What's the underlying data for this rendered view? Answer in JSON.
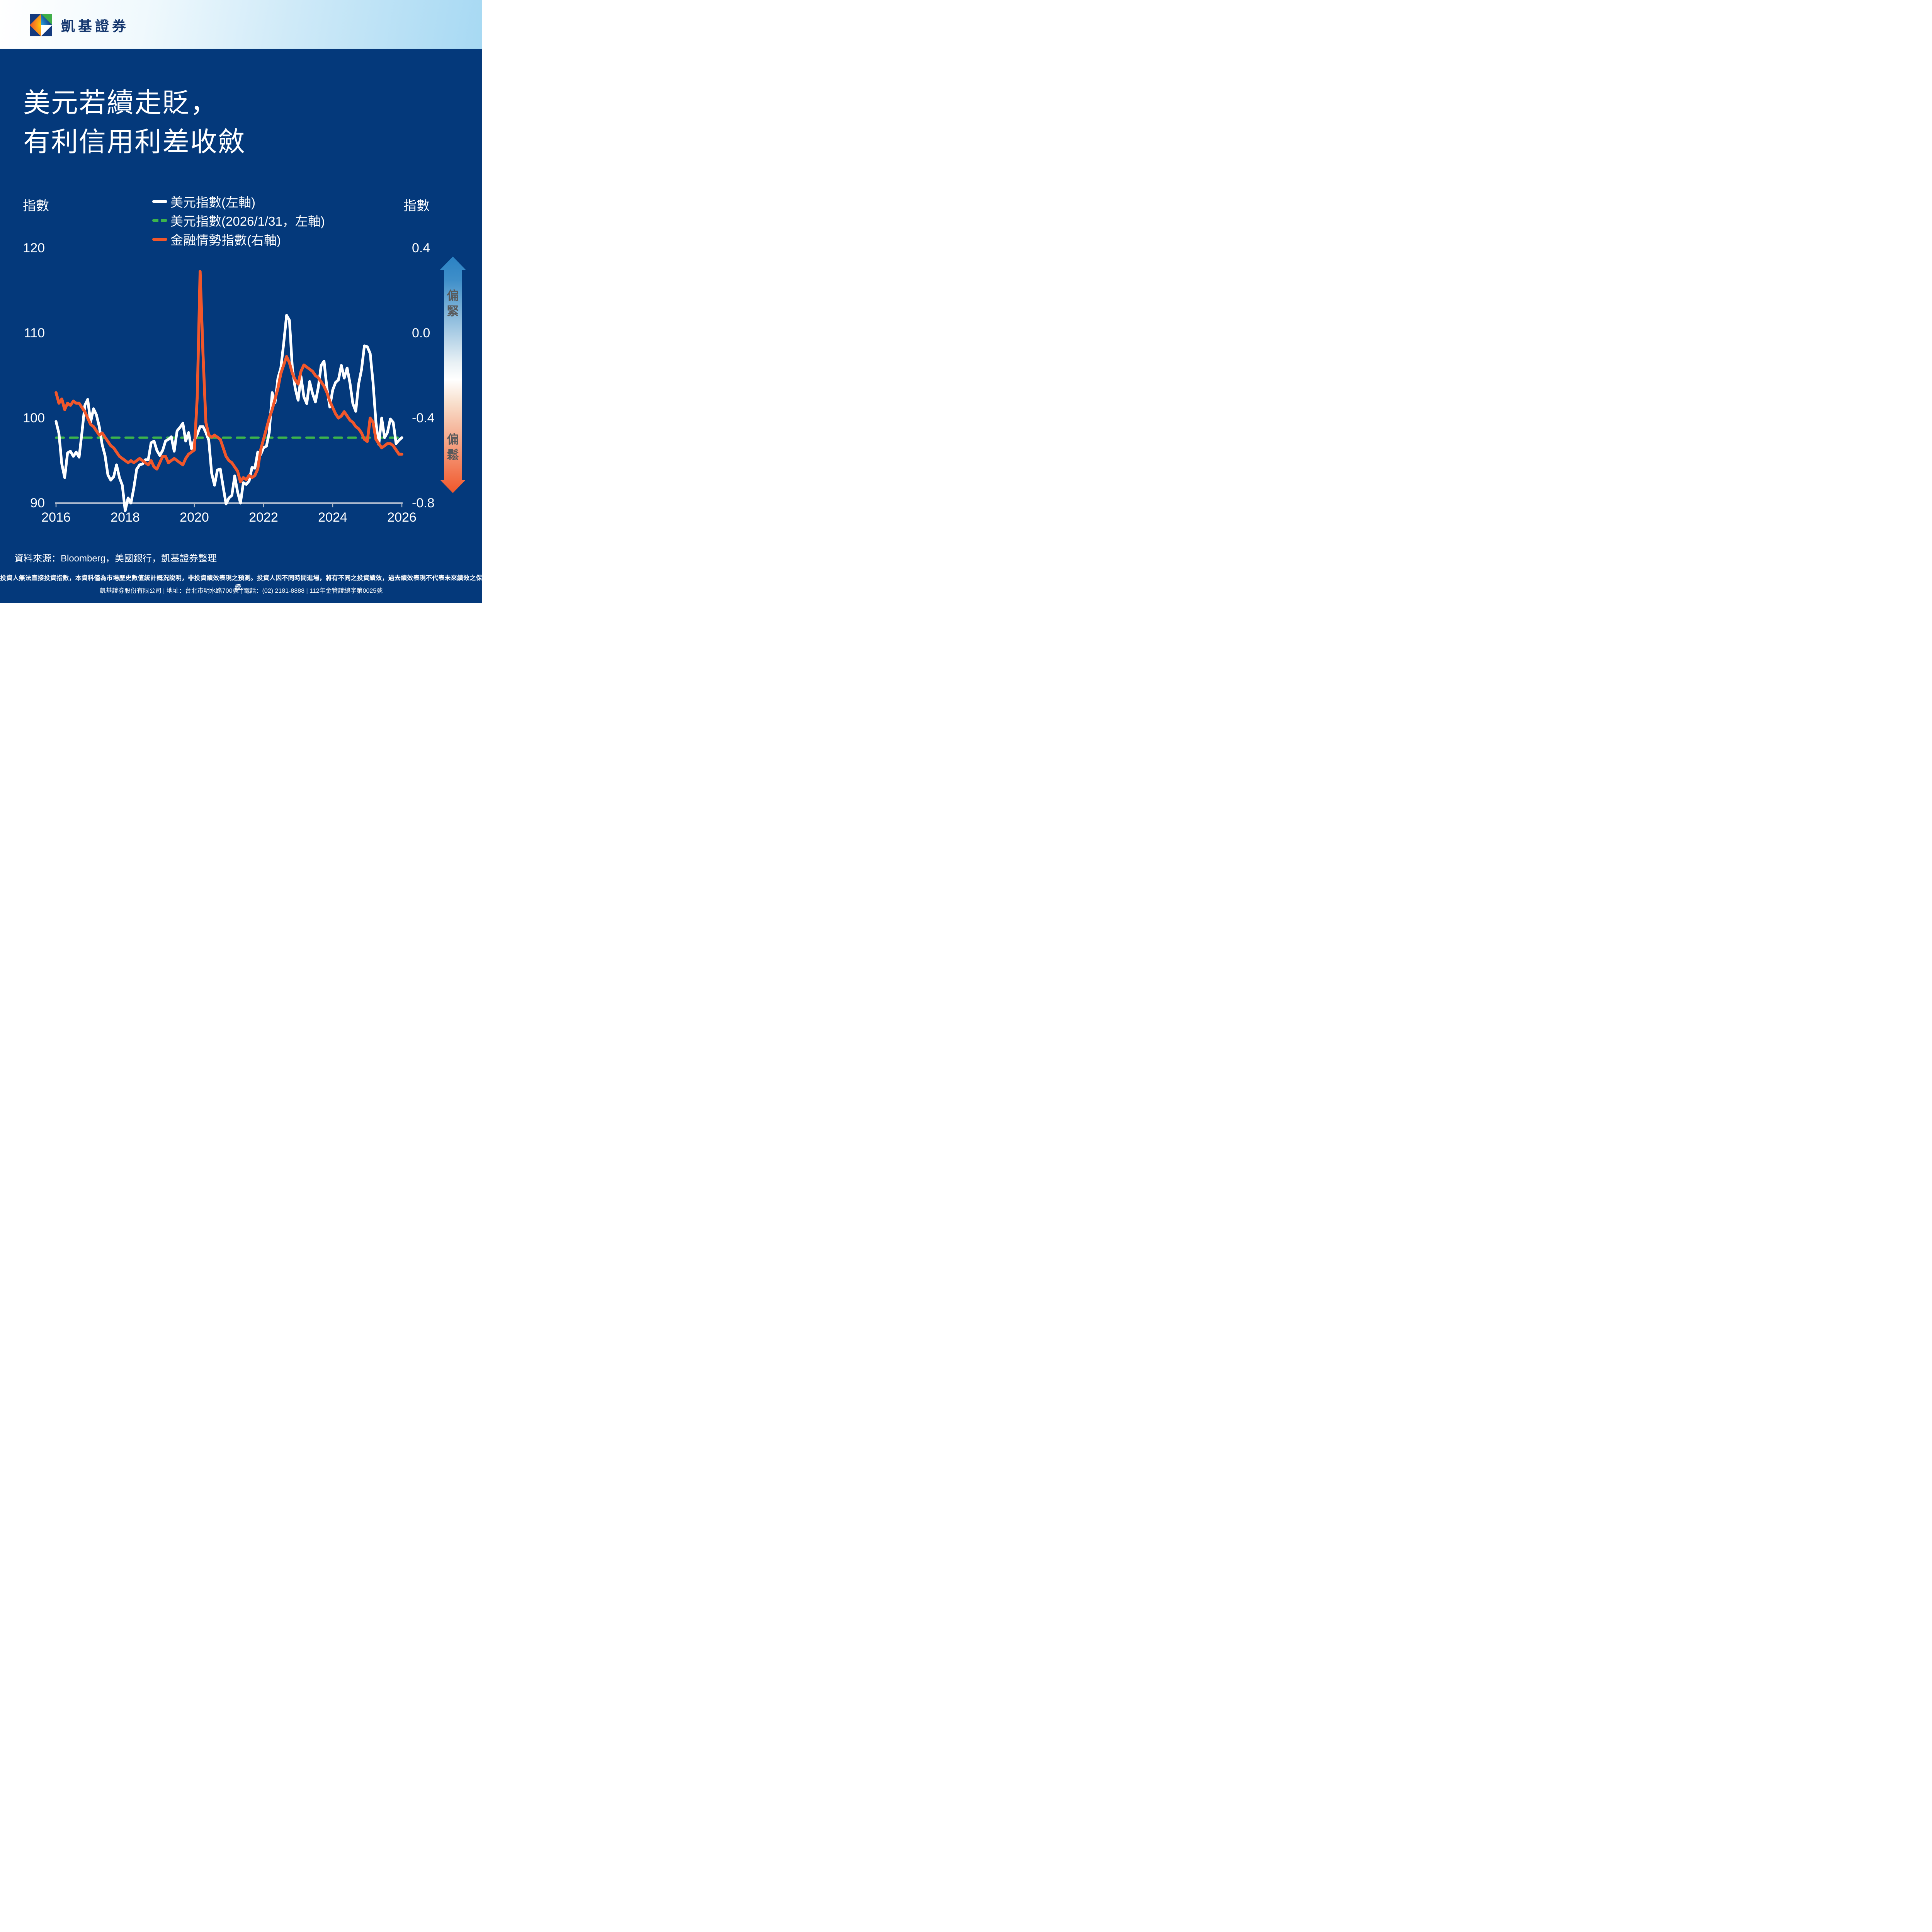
{
  "header": {
    "brand": "凱基證券"
  },
  "title": {
    "line1": "美元若續走貶，",
    "line2": "有利信用利差收斂"
  },
  "chart": {
    "left_axis_unit": "指數",
    "right_axis_unit": "指數",
    "left_ticks": [
      "120",
      "110",
      "100",
      "90"
    ],
    "right_ticks": [
      "0.4",
      "0.0",
      "-0.4",
      "-0.8"
    ],
    "x_ticks": [
      "2016",
      "2018",
      "2020",
      "2022",
      "2024",
      "2026"
    ],
    "legend": [
      {
        "label": "美元指數(左軸)",
        "color": "#FFFFFF",
        "style": "solid"
      },
      {
        "label": "美元指數(2026/1/31，左軸)",
        "color": "#3CB44B",
        "style": "dashed"
      },
      {
        "label": "金融情勢指數(右軸)",
        "color": "#F1572B",
        "style": "solid"
      }
    ]
  },
  "chart_data": {
    "type": "line",
    "x_axis": {
      "ticks": [
        2016,
        2018,
        2020,
        2022,
        2024,
        2026
      ],
      "min_year": 2016,
      "max_year": 2026,
      "months_per_point": 1,
      "start": "2016-01",
      "end": "2026-01"
    },
    "left_axis": {
      "label": "指數",
      "min": 90,
      "max": 120,
      "ticks": [
        120,
        110,
        100,
        90
      ]
    },
    "right_axis": {
      "label": "指數",
      "min": -0.8,
      "max": 0.4,
      "ticks": [
        0.4,
        0.0,
        -0.4,
        -0.8
      ]
    },
    "grid": false,
    "legend_position": "top-center",
    "series": [
      {
        "name": "美元指數(左軸)",
        "axis": "left",
        "color": "#FFFFFF",
        "style": "solid",
        "width": 7,
        "z": 2,
        "values": [
          99.6,
          98.2,
          94.6,
          93.0,
          95.9,
          96.1,
          95.5,
          96.0,
          95.4,
          98.3,
          101.5,
          102.2,
          99.5,
          101.1,
          100.4,
          99.0,
          96.9,
          95.6,
          93.3,
          92.7,
          93.1,
          94.5,
          93.0,
          92.1,
          89.1,
          90.6,
          90.0,
          91.8,
          94.0,
          94.5,
          94.6,
          95.1,
          95.1,
          97.1,
          97.3,
          96.2,
          95.6,
          96.2,
          97.3,
          97.5,
          97.8,
          96.1,
          98.5,
          98.9,
          99.4,
          97.3,
          98.3,
          96.4,
          97.4,
          98.1,
          99.0,
          99.0,
          98.3,
          97.4,
          93.5,
          92.1,
          93.9,
          94.0,
          91.9,
          89.9,
          90.6,
          90.9,
          93.2,
          91.3,
          90.0,
          92.4,
          92.2,
          92.6,
          94.2,
          94.1,
          96.0,
          95.7,
          96.5,
          96.7,
          98.3,
          103.0,
          101.8,
          104.7,
          105.9,
          108.8,
          112.1,
          111.5,
          105.9,
          103.5,
          102.1,
          104.9,
          102.5,
          101.7,
          104.3,
          102.9,
          101.9,
          103.6,
          106.2,
          106.7,
          103.5,
          101.3,
          103.3,
          104.2,
          104.5,
          106.2,
          104.7,
          105.9,
          104.1,
          101.7,
          100.8,
          104.0,
          105.7,
          108.5,
          108.4,
          107.6,
          104.2,
          99.5,
          96.9,
          100.0,
          97.7,
          98.3,
          99.9,
          99.5,
          97.0,
          97.4,
          97.7
        ]
      },
      {
        "name": "美元指數(2026/1/31，左軸)",
        "axis": "left",
        "color": "#3CB44B",
        "style": "dashed",
        "width": 6,
        "z": 1,
        "constant": 97.7
      },
      {
        "name": "金融情勢指數(右軸)",
        "axis": "right",
        "color": "#F1572B",
        "style": "solid",
        "width": 7.5,
        "z": 3,
        "values": [
          -0.28,
          -0.33,
          -0.31,
          -0.36,
          -0.33,
          -0.34,
          -0.32,
          -0.33,
          -0.33,
          -0.35,
          -0.37,
          -0.4,
          -0.43,
          -0.44,
          -0.46,
          -0.48,
          -0.47,
          -0.49,
          -0.51,
          -0.53,
          -0.54,
          -0.56,
          -0.58,
          -0.59,
          -0.6,
          -0.61,
          -0.6,
          -0.61,
          -0.6,
          -0.59,
          -0.6,
          -0.61,
          -0.62,
          -0.6,
          -0.63,
          -0.64,
          -0.61,
          -0.58,
          -0.58,
          -0.61,
          -0.6,
          -0.59,
          -0.6,
          -0.61,
          -0.62,
          -0.59,
          -0.57,
          -0.56,
          -0.55,
          -0.3,
          0.29,
          -0.1,
          -0.42,
          -0.48,
          -0.49,
          -0.48,
          -0.49,
          -0.5,
          -0.54,
          -0.58,
          -0.6,
          -0.61,
          -0.63,
          -0.65,
          -0.7,
          -0.68,
          -0.69,
          -0.67,
          -0.68,
          -0.67,
          -0.64,
          -0.55,
          -0.5,
          -0.45,
          -0.4,
          -0.36,
          -0.31,
          -0.26,
          -0.19,
          -0.15,
          -0.11,
          -0.14,
          -0.19,
          -0.22,
          -0.24,
          -0.18,
          -0.15,
          -0.16,
          -0.17,
          -0.18,
          -0.2,
          -0.21,
          -0.23,
          -0.25,
          -0.28,
          -0.32,
          -0.35,
          -0.38,
          -0.4,
          -0.39,
          -0.37,
          -0.39,
          -0.41,
          -0.42,
          -0.44,
          -0.45,
          -0.47,
          -0.5,
          -0.51,
          -0.4,
          -0.42,
          -0.5,
          -0.52,
          -0.54,
          -0.53,
          -0.52,
          -0.52,
          -0.53,
          -0.55,
          -0.57,
          -0.57
        ]
      }
    ]
  },
  "arrow": {
    "top_label": "偏緊",
    "bottom_label": "偏鬆"
  },
  "source": "資料來源：Bloomberg，美國銀行，凱基證券整理",
  "disclaimer1": "投資人無法直接投資指數，本資料僅為市場歷史數值統計概況說明，非投資績效表現之預測。投資人因不同時間進場，將有不同之投資績效，過去績效表現不代表未來績效之保證。",
  "disclaimer2": "凱基證券股份有限公司 | 地址：台北市明水路700號 | 電話：(02) 2181-8888 | 112年金管證總字第0025號",
  "colors": {
    "background": "#04397B",
    "header_gradient_start": "#FFFFFF",
    "header_gradient_end": "#A7D9F3",
    "usd_line": "#FFFFFF",
    "forecast_line": "#3CB44B",
    "fci_line": "#F1572B",
    "axis": "#C7CEDA",
    "arrow_top": "#2B82C4",
    "arrow_bottom": "#F1572B",
    "arrow_label_gray": "#58595B",
    "logo_navy": "#143A7E",
    "logo_green": "#3FAE49",
    "logo_cyan": "#29A8E0",
    "logo_orange": "#ED551F",
    "logo_yellow": "#FFC60B"
  }
}
